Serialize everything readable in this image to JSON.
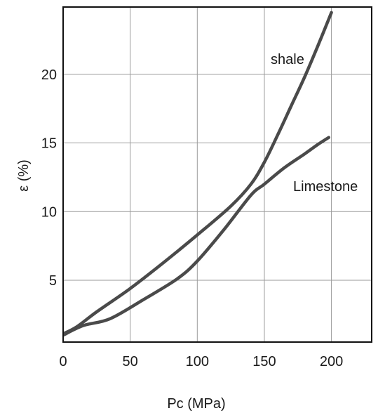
{
  "chart_data": {
    "type": "line",
    "xlabel": "Pc (MPa)",
    "ylabel": "ε (%)",
    "xlim": [
      0,
      230
    ],
    "ylim": [
      0.5,
      24.9
    ],
    "x_ticks": [
      0,
      50,
      100,
      150,
      200
    ],
    "y_ticks": [
      5,
      10,
      15,
      20
    ],
    "grid": true,
    "series": [
      {
        "name": "shale",
        "x": [
          0,
          10,
          25,
          50,
          75,
          100,
          125,
          140,
          150,
          160,
          170,
          180,
          190,
          200
        ],
        "y": [
          1.1,
          1.6,
          2.7,
          4.4,
          6.3,
          8.3,
          10.4,
          12.0,
          13.6,
          15.6,
          17.7,
          19.8,
          22.1,
          24.5
        ]
      },
      {
        "name": "Limestone",
        "x": [
          0,
          15,
          35,
          60,
          85,
          100,
          120,
          140,
          150,
          165,
          180,
          190,
          198
        ],
        "y": [
          1.0,
          1.7,
          2.2,
          3.6,
          5.1,
          6.4,
          8.7,
          11.2,
          12.0,
          13.2,
          14.2,
          14.9,
          15.4
        ]
      }
    ],
    "annotations": [
      {
        "text": "shale",
        "series": "shale"
      },
      {
        "text": "Limestone",
        "series": "Limestone"
      }
    ],
    "colors": {
      "lines": "#4a4a4a",
      "grid": "#9a9a9a",
      "frame": "#111111",
      "text": "#1a1a1a"
    }
  }
}
